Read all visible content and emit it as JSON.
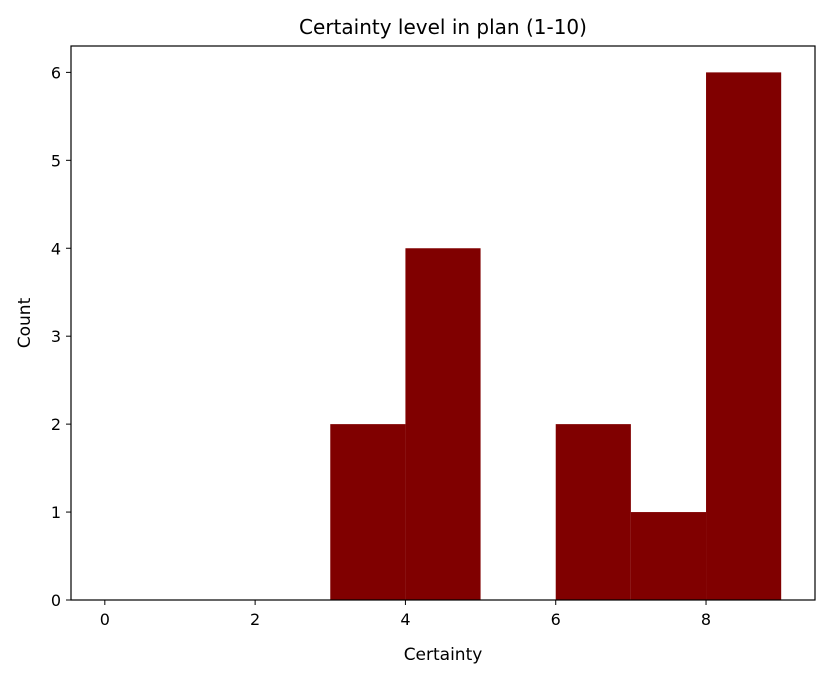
{
  "chart_data": {
    "type": "bar",
    "title": "Certainty level in plan (1-10)",
    "xlabel": "Certainty",
    "ylabel": "Count",
    "xlim": [
      -0.45,
      9.45
    ],
    "ylim": [
      0,
      6.3
    ],
    "xticks": [
      0,
      2,
      4,
      6,
      8
    ],
    "yticks": [
      0,
      1,
      2,
      3,
      4,
      5,
      6
    ],
    "grid": false,
    "bar_color": "#800000",
    "bins": [
      {
        "x0": 0,
        "x1": 1,
        "value": 0
      },
      {
        "x0": 1,
        "x1": 2,
        "value": 0
      },
      {
        "x0": 2,
        "x1": 3,
        "value": 0
      },
      {
        "x0": 3,
        "x1": 4,
        "value": 2
      },
      {
        "x0": 4,
        "x1": 5,
        "value": 4
      },
      {
        "x0": 5,
        "x1": 6,
        "value": 0
      },
      {
        "x0": 6,
        "x1": 7,
        "value": 2
      },
      {
        "x0": 7,
        "x1": 8,
        "value": 1
      },
      {
        "x0": 8,
        "x1": 9,
        "value": 6
      }
    ]
  }
}
